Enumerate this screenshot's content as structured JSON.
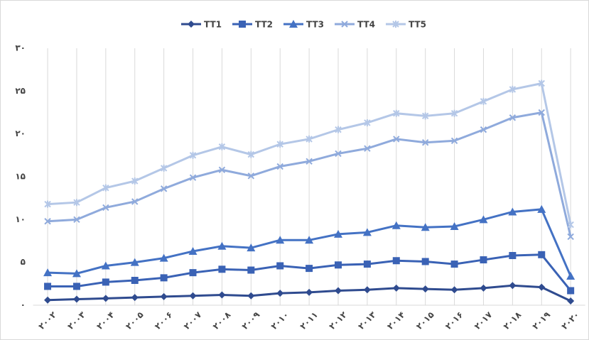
{
  "chart_data": {
    "type": "line",
    "categories": [
      "۲۰۰۲",
      "۲۰۰۳",
      "۲۰۰۴",
      "۲۰۰۵",
      "۲۰۰۶",
      "۲۰۰۷",
      "۲۰۰۸",
      "۲۰۰۹",
      "۲۰۱۰",
      "۲۰۱۱",
      "۲۰۱۲",
      "۲۰۱۳",
      "۲۰۱۴",
      "۲۰۱۵",
      "۲۰۱۶",
      "۲۰۱۷",
      "۲۰۱۸",
      "۲۰۱۹",
      "۲۰۲۰"
    ],
    "series": [
      {
        "name": "TT1",
        "color": "#2f4b8f",
        "marker": "diamond",
        "values": [
          0.6,
          0.7,
          0.8,
          0.9,
          1.0,
          1.1,
          1.2,
          1.1,
          1.4,
          1.5,
          1.7,
          1.8,
          2.0,
          1.9,
          1.8,
          2.0,
          2.3,
          2.1,
          0.5
        ]
      },
      {
        "name": "TT2",
        "color": "#3a62b5",
        "marker": "square",
        "values": [
          2.2,
          2.2,
          2.7,
          2.9,
          3.2,
          3.8,
          4.2,
          4.1,
          4.6,
          4.3,
          4.7,
          4.8,
          5.2,
          5.1,
          4.8,
          5.3,
          5.8,
          5.9,
          1.7
        ]
      },
      {
        "name": "TT3",
        "color": "#4472c4",
        "marker": "triangle",
        "values": [
          3.8,
          3.7,
          4.6,
          5.0,
          5.5,
          6.3,
          6.9,
          6.7,
          7.6,
          7.6,
          8.3,
          8.5,
          9.3,
          9.1,
          9.2,
          10.0,
          10.9,
          11.2,
          3.4
        ]
      },
      {
        "name": "TT4",
        "color": "#8faadc",
        "marker": "x",
        "values": [
          9.8,
          10.0,
          11.4,
          12.1,
          13.6,
          14.9,
          15.8,
          15.1,
          16.2,
          16.8,
          17.7,
          18.3,
          19.4,
          19.0,
          19.2,
          20.5,
          21.9,
          22.5,
          8.0
        ]
      },
      {
        "name": "TT5",
        "color": "#b4c7e7",
        "marker": "star",
        "values": [
          11.8,
          12.0,
          13.7,
          14.5,
          16.0,
          17.5,
          18.5,
          17.6,
          18.8,
          19.4,
          20.5,
          21.3,
          22.4,
          22.1,
          22.4,
          23.8,
          25.2,
          25.9,
          9.4
        ]
      }
    ],
    "ylim": [
      0,
      30
    ],
    "yticks": [
      {
        "value": 0,
        "label": "۰"
      },
      {
        "value": 5,
        "label": "۵"
      },
      {
        "value": 10,
        "label": "۱۰"
      },
      {
        "value": 15,
        "label": "۱۵"
      },
      {
        "value": 20,
        "label": "۲۰"
      },
      {
        "value": 25,
        "label": "۲۵"
      },
      {
        "value": 30,
        "label": "۳۰"
      }
    ],
    "grid": true,
    "legend": "top"
  }
}
